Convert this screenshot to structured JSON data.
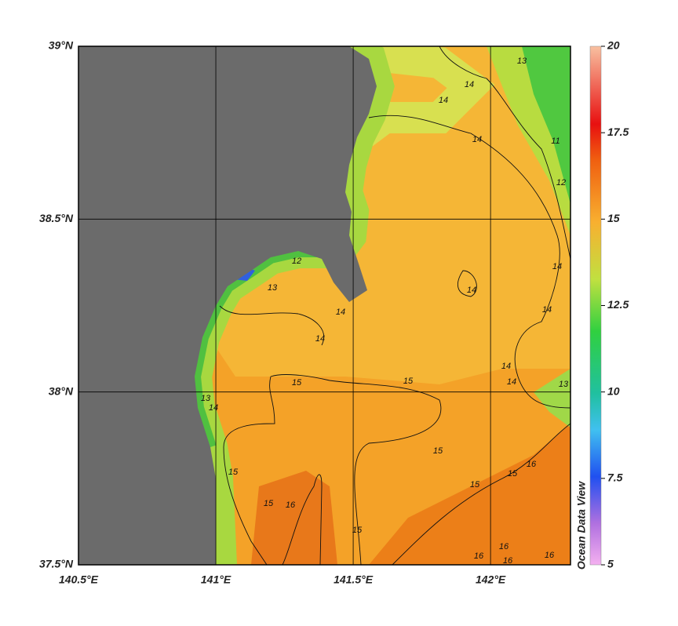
{
  "map": {
    "lon_range": [
      140.5,
      142.291
    ],
    "lat_range": [
      37.5,
      39
    ],
    "lon_ticks": [
      {
        "value": 140.5,
        "label": "140.5°E"
      },
      {
        "value": 141,
        "label": "141°E"
      },
      {
        "value": 141.5,
        "label": "141.5°E"
      },
      {
        "value": 142,
        "label": "142°E"
      }
    ],
    "lat_ticks": [
      {
        "value": 39,
        "label": "39°N"
      },
      {
        "value": 38.5,
        "label": "38.5°N"
      },
      {
        "value": 38,
        "label": "38°N"
      },
      {
        "value": 37.5,
        "label": "37.5°N"
      }
    ],
    "colorbar": {
      "range": [
        5,
        20
      ],
      "ticks": [
        20,
        17.5,
        15,
        12.5,
        10,
        7.5,
        5
      ]
    },
    "contour_labels": [
      14,
      14,
      14,
      13,
      11,
      12,
      14,
      14,
      14,
      14,
      14,
      13,
      13,
      14,
      14,
      15,
      15,
      13,
      14,
      15,
      15,
      15,
      15,
      16,
      15,
      16,
      15,
      16,
      16,
      16,
      16,
      12
    ],
    "watermark": "Ocean Data View"
  }
}
